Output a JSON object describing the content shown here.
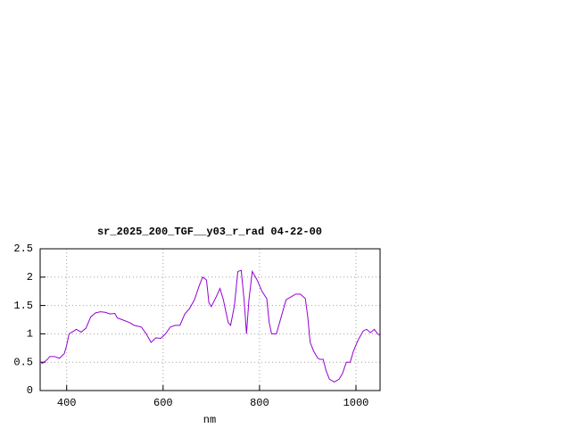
{
  "chart_data": {
    "type": "line",
    "title": "sr_2025_200_TGF__y03_r_rad 04-22-00",
    "x_label": "nm",
    "x": [
      345,
      350,
      360,
      365,
      375,
      385,
      395,
      400,
      405,
      415,
      420,
      430,
      440,
      450,
      460,
      470,
      480,
      490,
      500,
      505,
      515,
      530,
      540,
      555,
      565,
      575,
      585,
      595,
      605,
      615,
      625,
      635,
      645,
      655,
      665,
      675,
      682,
      690,
      695,
      700,
      710,
      718,
      725,
      735,
      740,
      748,
      755,
      762,
      768,
      773,
      778,
      785,
      795,
      805,
      815,
      820,
      825,
      835,
      845,
      855,
      865,
      875,
      885,
      895,
      900,
      905,
      912,
      920,
      925,
      932,
      938,
      945,
      955,
      965,
      972,
      980,
      988,
      995,
      1005,
      1015,
      1022,
      1030,
      1038,
      1045,
      1050
    ],
    "series": [
      {
        "color": "#9400d3",
        "values": [
          0.5,
          0.48,
          0.55,
          0.6,
          0.6,
          0.57,
          0.65,
          0.8,
          1.0,
          1.05,
          1.08,
          1.03,
          1.1,
          1.3,
          1.37,
          1.39,
          1.38,
          1.35,
          1.36,
          1.28,
          1.25,
          1.2,
          1.15,
          1.12,
          1.0,
          0.85,
          0.93,
          0.92,
          1.0,
          1.12,
          1.15,
          1.15,
          1.35,
          1.45,
          1.6,
          1.85,
          2.0,
          1.95,
          1.55,
          1.48,
          1.65,
          1.8,
          1.6,
          1.2,
          1.15,
          1.5,
          2.1,
          2.12,
          1.6,
          1.0,
          1.6,
          2.1,
          1.95,
          1.75,
          1.62,
          1.2,
          1.0,
          1.0,
          1.3,
          1.6,
          1.65,
          1.7,
          1.7,
          1.62,
          1.3,
          0.85,
          0.7,
          0.58,
          0.55,
          0.55,
          0.35,
          0.2,
          0.15,
          0.2,
          0.3,
          0.5,
          0.5,
          0.7,
          0.9,
          1.05,
          1.08,
          1.02,
          1.08,
          1.0,
          0.97
        ]
      }
    ],
    "xlim": [
      345,
      1050
    ],
    "ylim": [
      0,
      2.5
    ],
    "xticks": [
      400,
      600,
      800,
      1000
    ],
    "yticks": [
      0,
      0.5,
      1,
      1.5,
      2,
      2.5
    ],
    "grid": true
  }
}
